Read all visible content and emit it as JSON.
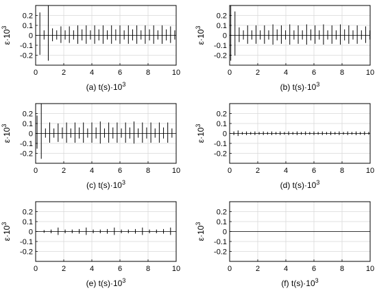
{
  "chart_data": [
    {
      "type": "line",
      "panel_tag": "(a)",
      "xlabel_main": "t(s)·10",
      "xlabel_exp": "3",
      "ylabel_main": "ε·10",
      "ylabel_exp": "3",
      "xlim": [
        0,
        10
      ],
      "ylim": [
        -0.3,
        0.3
      ],
      "xticks": [
        "0",
        "2",
        "4",
        "6",
        "8",
        "10"
      ],
      "yticks": [
        "0.2",
        "0.1",
        "0",
        "-0.1",
        "-0.2"
      ],
      "grid": true,
      "impulse_start": 0.3,
      "impulse_period": 0.3,
      "impulse_amplitudes": [
        0.23,
        0.05,
        0.3,
        0.07,
        0.05,
        0.09,
        0.05,
        0.09,
        0.05,
        0.1,
        0.06,
        0.1,
        0.05,
        0.1,
        0.06,
        0.1,
        0.05,
        0.1,
        0.06,
        0.1,
        0.05,
        0.1,
        0.06,
        0.1,
        0.05,
        0.1,
        0.06,
        0.1,
        0.05,
        0.1,
        0.06,
        0.09,
        0.05
      ]
    },
    {
      "type": "line",
      "panel_tag": "(b)",
      "xlabel_main": "t(s)·10",
      "xlabel_exp": "3",
      "ylabel_main": "ε·10",
      "ylabel_exp": "3",
      "xlim": [
        0,
        10
      ],
      "ylim": [
        -0.3,
        0.3
      ],
      "xticks": [
        "0",
        "2",
        "4",
        "6",
        "8",
        "10"
      ],
      "yticks": [
        "0.2",
        "0.1",
        "0",
        "-0.1",
        "-0.2"
      ],
      "grid": true,
      "impulse_start": 0.08,
      "impulse_period": 0.3,
      "impulse_amplitudes": [
        0.3,
        0.24,
        0.08,
        0.05,
        0.1,
        0.05,
        0.1,
        0.05,
        0.1,
        0.05,
        0.11,
        0.06,
        0.1,
        0.05,
        0.11,
        0.05,
        0.1,
        0.05,
        0.11,
        0.06,
        0.1,
        0.05,
        0.11,
        0.05,
        0.1,
        0.05,
        0.11,
        0.06,
        0.1,
        0.05,
        0.1,
        0.05,
        0.09,
        0.05
      ]
    },
    {
      "type": "line",
      "panel_tag": "(c)",
      "xlabel_main": "t(s)·10",
      "xlabel_exp": "3",
      "ylabel_main": "ε·10",
      "ylabel_exp": "3",
      "xlim": [
        0,
        10
      ],
      "ylim": [
        -0.3,
        0.3
      ],
      "xticks": [
        "0",
        "2",
        "4",
        "6",
        "8",
        "10"
      ],
      "yticks": [
        "0.2",
        "0.1",
        "0",
        "-0.1",
        "-0.2"
      ],
      "grid": true,
      "impulse_start": 0.1,
      "impulse_period": 0.3,
      "impulse_amplitudes": [
        0.18,
        0.3,
        0.05,
        0.11,
        0.05,
        0.1,
        0.06,
        0.11,
        0.05,
        0.11,
        0.06,
        0.11,
        0.05,
        0.11,
        0.06,
        0.12,
        0.05,
        0.11,
        0.06,
        0.11,
        0.05,
        0.11,
        0.06,
        0.12,
        0.05,
        0.11,
        0.06,
        0.11,
        0.05,
        0.11,
        0.06,
        0.11,
        0.05,
        0.1
      ]
    },
    {
      "type": "line",
      "panel_tag": "(d)",
      "xlabel_main": "t(s)·10",
      "xlabel_exp": "3",
      "ylabel_main": "ε·10",
      "ylabel_exp": "3",
      "xlim": [
        0,
        10
      ],
      "ylim": [
        -0.3,
        0.3
      ],
      "xticks": [
        "0",
        "2",
        "4",
        "6",
        "8",
        "10"
      ],
      "yticks": [
        "0.2",
        "0.1",
        "0",
        "-0.1",
        "-0.2"
      ],
      "grid": true,
      "impulse_start": 0.3,
      "impulse_period": 0.3,
      "impulse_amplitudes": [
        0.02,
        0.03,
        0.015,
        0.02,
        0.015,
        0.02,
        0.015,
        0.02,
        0.015,
        0.02,
        0.015,
        0.02,
        0.015,
        0.02,
        0.015,
        0.02,
        0.015,
        0.02,
        0.015,
        0.02,
        0.015,
        0.02,
        0.015,
        0.02,
        0.015,
        0.02,
        0.015,
        0.02,
        0.015,
        0.02,
        0.015,
        0.02,
        0.015
      ]
    },
    {
      "type": "line",
      "panel_tag": "(e)",
      "xlabel_main": "t(s)·10",
      "xlabel_exp": "3",
      "ylabel_main": "ε·10",
      "ylabel_exp": "3",
      "xlim": [
        0,
        10
      ],
      "ylim": [
        -0.3,
        0.3
      ],
      "xticks": [
        "0",
        "2",
        "4",
        "6",
        "8",
        "10"
      ],
      "yticks": [
        "0.2",
        "0.1",
        "0",
        "-0.1",
        "-0.2"
      ],
      "grid": true,
      "impulse_start": 0.6,
      "impulse_period": 0.5,
      "impulse_amplitudes": [
        0.015,
        0.02,
        0.04,
        0.02,
        0.02,
        0.025,
        0.04,
        0.02,
        0.02,
        0.025,
        0.04,
        0.02,
        0.02,
        0.025,
        0.04,
        0.02,
        0.02,
        0.025,
        0.04
      ]
    },
    {
      "type": "line",
      "panel_tag": "(f)",
      "xlabel_main": "t(s)·10",
      "xlabel_exp": "3",
      "ylabel_main": "ε·10",
      "ylabel_exp": "3",
      "xlim": [
        0,
        10
      ],
      "ylim": [
        -0.3,
        0.3
      ],
      "xticks": [
        "0",
        "2",
        "4",
        "6",
        "8",
        "10"
      ],
      "yticks": [
        "0.2",
        "0.1",
        "0",
        "-0.1",
        "-0.2"
      ],
      "grid": true,
      "impulse_start": 0,
      "impulse_period": 1,
      "impulse_amplitudes": []
    }
  ]
}
